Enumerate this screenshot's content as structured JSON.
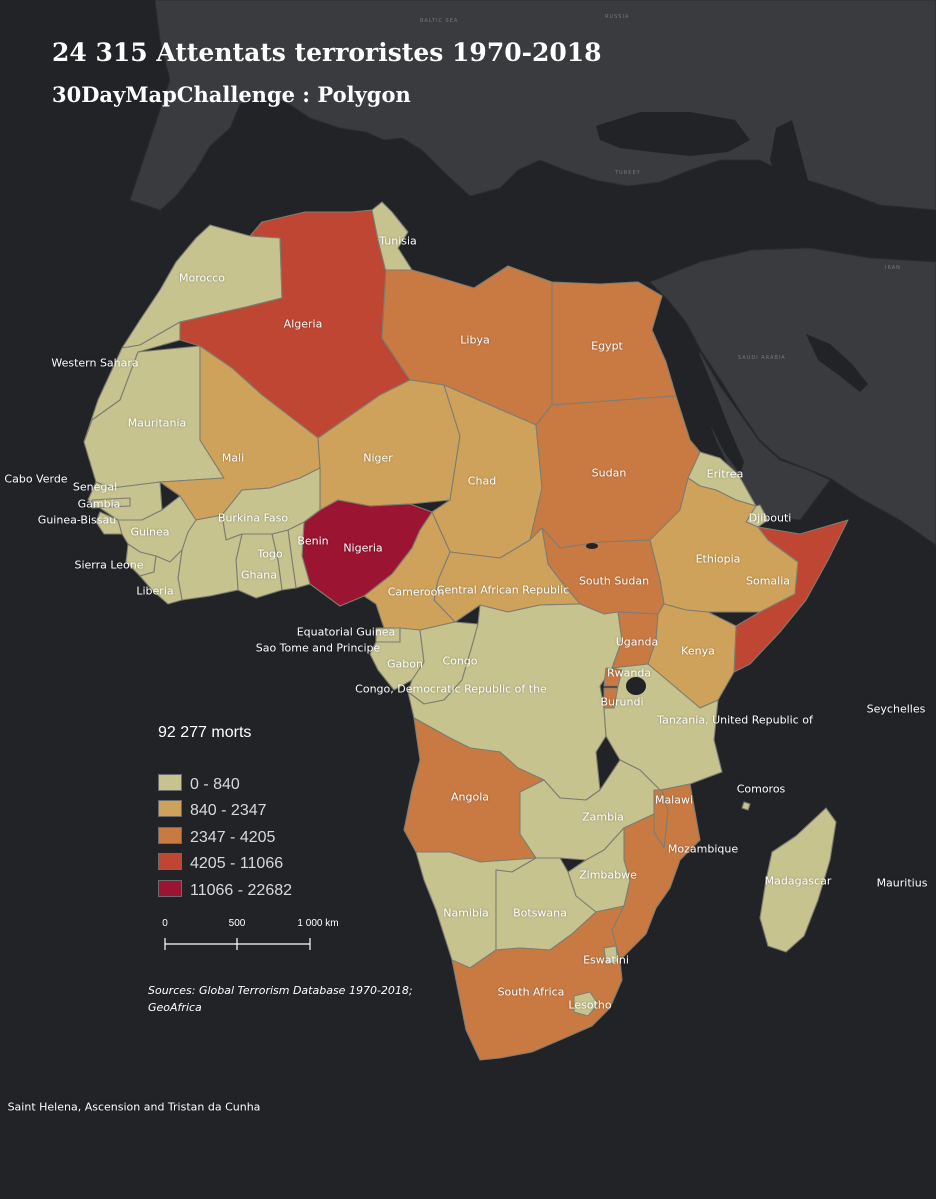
{
  "title": "24 315 Attentats terroristes 1970-2018",
  "subtitle": "30DayMapChallenge : Polygon",
  "colors": {
    "background": "#222327",
    "land_outside": "#3a3b3f",
    "class_1": "#c6c38f",
    "class_2": "#cfa25b",
    "class_3": "#c97a43",
    "class_4": "#bf4632",
    "class_5": "#9b1431",
    "border": "#7d7d72"
  },
  "legend": {
    "title": "92 277 morts",
    "items": [
      {
        "label": "0 - 840",
        "color": "#c6c38f"
      },
      {
        "label": "840 - 2347",
        "color": "#cfa25b"
      },
      {
        "label": "2347 - 4205",
        "color": "#c97a43"
      },
      {
        "label": "4205 - 11066",
        "color": "#bf4632"
      },
      {
        "label": "11066 - 22682",
        "color": "#9b1431"
      }
    ]
  },
  "scale_bar": {
    "ticks": [
      "0",
      "500",
      "1 000 km"
    ]
  },
  "sources": "Sources: Global Terrorism Database 1970-2018; GeoAfrica",
  "countries": [
    {
      "name": "Morocco",
      "class": 1
    },
    {
      "name": "Western Sahara",
      "class": 1
    },
    {
      "name": "Algeria",
      "class": 4
    },
    {
      "name": "Tunisia",
      "class": 1
    },
    {
      "name": "Libya",
      "class": 3
    },
    {
      "name": "Egypt",
      "class": 3
    },
    {
      "name": "Mauritania",
      "class": 1
    },
    {
      "name": "Mali",
      "class": 2
    },
    {
      "name": "Niger",
      "class": 2
    },
    {
      "name": "Chad",
      "class": 2
    },
    {
      "name": "Sudan",
      "class": 3
    },
    {
      "name": "Eritrea",
      "class": 1
    },
    {
      "name": "Djibouti",
      "class": 1
    },
    {
      "name": "Ethiopia",
      "class": 2
    },
    {
      "name": "Somalia",
      "class": 4
    },
    {
      "name": "South Sudan",
      "class": 3
    },
    {
      "name": "Central African Republic",
      "class": 2
    },
    {
      "name": "Cameroon",
      "class": 2
    },
    {
      "name": "Nigeria",
      "class": 5
    },
    {
      "name": "Benin",
      "class": 1
    },
    {
      "name": "Togo",
      "class": 1
    },
    {
      "name": "Ghana",
      "class": 1
    },
    {
      "name": "Burkina Faso",
      "class": 1
    },
    {
      "name": "Senegal",
      "class": 1
    },
    {
      "name": "Gambia",
      "class": 1
    },
    {
      "name": "Guinea-Bissau",
      "class": 1
    },
    {
      "name": "Guinea",
      "class": 1
    },
    {
      "name": "Sierra Leone",
      "class": 1
    },
    {
      "name": "Liberia",
      "class": 1
    },
    {
      "name": "Equatorial Guinea",
      "class": 1
    },
    {
      "name": "Sao Tome and Principe",
      "class": 1
    },
    {
      "name": "Gabon",
      "class": 1
    },
    {
      "name": "Congo",
      "class": 1
    },
    {
      "name": "Congo, Democratic Republic of the",
      "class": 1
    },
    {
      "name": "Uganda",
      "class": 3
    },
    {
      "name": "Rwanda",
      "class": 3
    },
    {
      "name": "Burundi",
      "class": 3
    },
    {
      "name": "Kenya",
      "class": 2
    },
    {
      "name": "Tanzania, United Republic of",
      "class": 1
    },
    {
      "name": "Angola",
      "class": 3
    },
    {
      "name": "Zambia",
      "class": 1
    },
    {
      "name": "Malawi",
      "class": 3
    },
    {
      "name": "Mozambique",
      "class": 3
    },
    {
      "name": "Zimbabwe",
      "class": 1
    },
    {
      "name": "Namibia",
      "class": 1
    },
    {
      "name": "Botswana",
      "class": 1
    },
    {
      "name": "South Africa",
      "class": 3
    },
    {
      "name": "Eswatini",
      "class": 1
    },
    {
      "name": "Lesotho",
      "class": 1
    },
    {
      "name": "Madagascar",
      "class": 1
    },
    {
      "name": "Comoros",
      "class": 1
    },
    {
      "name": "Seychelles",
      "class": 1
    },
    {
      "name": "Mauritius",
      "class": 1
    },
    {
      "name": "Cabo Verde",
      "class": 1
    },
    {
      "name": "Saint Helena, Ascension and Tristan da Cunha",
      "class": 1
    }
  ]
}
